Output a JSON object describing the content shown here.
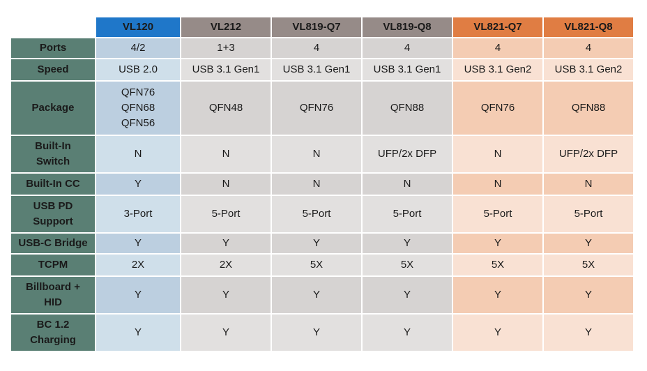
{
  "columns": [
    {
      "label": "VL120",
      "header_color": "#1f77c9",
      "cell_colors": [
        "#cfdfea",
        "#bccfe0"
      ]
    },
    {
      "label": "VL212",
      "header_color": "#968b88",
      "cell_colors": [
        "#e2e0df",
        "#d6d3d2"
      ]
    },
    {
      "label": "VL819-Q7",
      "header_color": "#968b88",
      "cell_colors": [
        "#e2e0df",
        "#d6d3d2"
      ]
    },
    {
      "label": "VL819-Q8",
      "header_color": "#968b88",
      "cell_colors": [
        "#e2e0df",
        "#d6d3d2"
      ]
    },
    {
      "label": "VL821-Q7",
      "header_color": "#e07d43",
      "cell_colors": [
        "#f9e1d3",
        "#f4ccb3"
      ]
    },
    {
      "label": "VL821-Q8",
      "header_color": "#e07d43",
      "cell_colors": [
        "#f9e1d3",
        "#f4ccb3"
      ]
    }
  ],
  "rows": [
    {
      "label": [
        "Ports"
      ],
      "values": [
        [
          "4/2"
        ],
        [
          "1+3"
        ],
        [
          "4"
        ],
        [
          "4"
        ],
        [
          "4"
        ],
        [
          "4"
        ]
      ]
    },
    {
      "label": [
        "Speed"
      ],
      "values": [
        [
          "USB 2.0"
        ],
        [
          "USB 3.1 Gen1"
        ],
        [
          "USB 3.1 Gen1"
        ],
        [
          "USB 3.1 Gen1"
        ],
        [
          "USB 3.1 Gen2"
        ],
        [
          "USB 3.1 Gen2"
        ]
      ]
    },
    {
      "label": [
        "Package"
      ],
      "values": [
        [
          "QFN76",
          "QFN68",
          "QFN56"
        ],
        [
          "QFN48"
        ],
        [
          "QFN76"
        ],
        [
          "QFN88"
        ],
        [
          "QFN76"
        ],
        [
          "QFN88"
        ]
      ]
    },
    {
      "label": [
        "Built-In",
        "Switch"
      ],
      "values": [
        [
          "N"
        ],
        [
          "N"
        ],
        [
          "N"
        ],
        [
          "UFP/2x DFP"
        ],
        [
          "N"
        ],
        [
          "UFP/2x DFP"
        ]
      ]
    },
    {
      "label": [
        "Built-In CC"
      ],
      "values": [
        [
          "Y"
        ],
        [
          "N"
        ],
        [
          "N"
        ],
        [
          "N"
        ],
        [
          "N"
        ],
        [
          "N"
        ]
      ]
    },
    {
      "label": [
        "USB PD",
        "Support"
      ],
      "values": [
        [
          "3-Port"
        ],
        [
          "5-Port"
        ],
        [
          "5-Port"
        ],
        [
          "5-Port"
        ],
        [
          "5-Port"
        ],
        [
          "5-Port"
        ]
      ]
    },
    {
      "label": [
        "USB-C Bridge"
      ],
      "values": [
        [
          "Y"
        ],
        [
          "Y"
        ],
        [
          "Y"
        ],
        [
          "Y"
        ],
        [
          "Y"
        ],
        [
          "Y"
        ]
      ]
    },
    {
      "label": [
        "TCPM"
      ],
      "values": [
        [
          "2X"
        ],
        [
          "2X"
        ],
        [
          "5X"
        ],
        [
          "5X"
        ],
        [
          "5X"
        ],
        [
          "5X"
        ]
      ]
    },
    {
      "label": [
        "Billboard +",
        "HID"
      ],
      "values": [
        [
          "Y"
        ],
        [
          "Y"
        ],
        [
          "Y"
        ],
        [
          "Y"
        ],
        [
          "Y"
        ],
        [
          "Y"
        ]
      ]
    },
    {
      "label": [
        "BC 1.2",
        "Charging"
      ],
      "values": [
        [
          "Y"
        ],
        [
          "Y"
        ],
        [
          "Y"
        ],
        [
          "Y"
        ],
        [
          "Y"
        ],
        [
          "Y"
        ]
      ]
    }
  ]
}
